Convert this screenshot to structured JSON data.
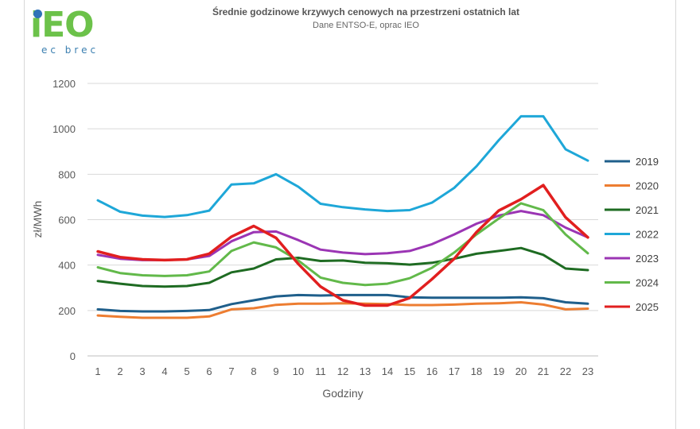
{
  "header": {
    "logo_text": "iEO",
    "logo_sub": "ec brec",
    "title": "Średnie godzinowe krzywych cenowych na przestrzeni ostatnich lat",
    "subtitle": "Dane ENTSO-E, oprac IEO"
  },
  "chart_data": {
    "type": "line",
    "title": "Średnie godzinowe krzywych cenowych na przestrzeni ostatnich lat",
    "subtitle": "Dane ENTSO-E, oprac IEO",
    "xlabel": "Godziny",
    "ylabel": "zł/MWh",
    "ylim": [
      0,
      1200
    ],
    "yticks": [
      0,
      200,
      400,
      600,
      800,
      1000,
      1200
    ],
    "grid": true,
    "legend_position": "right",
    "x": [
      1,
      2,
      3,
      4,
      5,
      6,
      7,
      8,
      9,
      10,
      11,
      12,
      13,
      14,
      15,
      16,
      17,
      18,
      19,
      20,
      21,
      22,
      23
    ],
    "series": [
      {
        "name": "2019",
        "color": "#1f5f8b",
        "values": [
          205,
          198,
          196,
          196,
          198,
          202,
          228,
          245,
          262,
          268,
          266,
          268,
          268,
          268,
          258,
          256,
          256,
          256,
          256,
          258,
          254,
          236,
          230
        ]
      },
      {
        "name": "2020",
        "color": "#ed7d31",
        "values": [
          178,
          172,
          168,
          168,
          168,
          174,
          205,
          210,
          225,
          230,
          230,
          232,
          230,
          228,
          224,
          224,
          226,
          230,
          232,
          236,
          226,
          205,
          208
        ]
      },
      {
        "name": "2021",
        "color": "#1e6b22",
        "values": [
          330,
          318,
          308,
          305,
          308,
          322,
          368,
          385,
          425,
          432,
          418,
          420,
          410,
          408,
          402,
          410,
          428,
          450,
          462,
          475,
          445,
          385,
          378
        ]
      },
      {
        "name": "2022",
        "color": "#1ea7d8",
        "values": [
          685,
          635,
          618,
          612,
          620,
          640,
          755,
          760,
          800,
          745,
          670,
          655,
          645,
          638,
          642,
          675,
          740,
          835,
          950,
          1055,
          1055,
          910,
          860
        ]
      },
      {
        "name": "2023",
        "color": "#9b35b4",
        "values": [
          445,
          428,
          422,
          422,
          425,
          440,
          505,
          545,
          548,
          510,
          468,
          455,
          448,
          452,
          462,
          492,
          535,
          582,
          618,
          638,
          620,
          565,
          522
        ]
      },
      {
        "name": "2024",
        "color": "#62b94a",
        "values": [
          390,
          365,
          355,
          352,
          355,
          372,
          462,
          500,
          478,
          420,
          345,
          322,
          312,
          318,
          342,
          388,
          455,
          535,
          605,
          672,
          642,
          535,
          452
        ]
      },
      {
        "name": "2025",
        "color": "#e11f1f",
        "values": [
          460,
          435,
          425,
          422,
          425,
          450,
          525,
          572,
          520,
          405,
          305,
          245,
          222,
          222,
          255,
          338,
          428,
          545,
          640,
          690,
          752,
          610,
          522
        ]
      }
    ]
  }
}
